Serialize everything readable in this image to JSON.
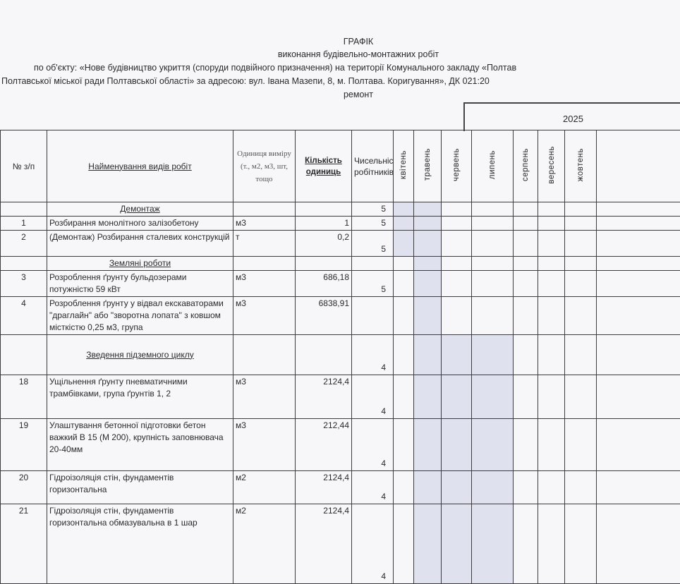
{
  "header": {
    "title": "ГРАФІК",
    "subtitle": "виконання будівельно-монтажних робіт",
    "object_line1": "по об'єкту: «Нове будівництво укриття (споруди подвійного призначення) на території Комунального закладу «Полтав",
    "object_line2": "Полтавської міської ради Полтавської області» за адресою: вул. Івана Мазепи, 8, м. Полтава. Коригування», ДК 021:20",
    "object_line3": "ремонт"
  },
  "table": {
    "year": "2025",
    "columns": {
      "num": "№ з/п",
      "name": "Найменування видів робіт",
      "unit": "Одиниця виміру (т., м2, м3, шт, тощо",
      "qty": "Кількість одиниць",
      "workers": "Чисельність робітників"
    },
    "months": [
      "квітень",
      "травень",
      "червень",
      "липень",
      "серпень",
      "вересень",
      "жовтень",
      ""
    ],
    "shade_color": "#dfe2ee",
    "rows": [
      {
        "type": "section",
        "name": "Демонтаж",
        "workers": "5",
        "shaded": [
          0,
          1
        ]
      },
      {
        "num": "1",
        "name": "Розбирання монолітного залізобетону",
        "unit": "м3",
        "qty": "1",
        "workers": "5",
        "shaded": [
          0,
          1
        ]
      },
      {
        "num": "2",
        "name": "(Демонтаж) Розбирання сталевих конструкцій",
        "unit": "т",
        "qty": "0,2",
        "workers": "5",
        "shaded": [
          0,
          1
        ]
      },
      {
        "type": "section",
        "name": "Земляні роботи",
        "workers": "",
        "shaded": [
          1
        ]
      },
      {
        "num": "3",
        "name": "Розроблення ґрунту бульдозерами потужністю 59 кВт",
        "unit": "м3",
        "qty": "686,18",
        "workers": "5",
        "shaded": [
          1
        ]
      },
      {
        "num": "4",
        "name": "Розроблення ґрунту у відвал екскаваторами \"драглайн\" або \"зворотна лопата\" з ковшом місткістю 0,25 м3, група",
        "unit": "м3",
        "qty": "6838,91",
        "workers": "",
        "shaded": [
          1
        ]
      },
      {
        "type": "section",
        "name": "Зведення підземного циклу",
        "workers": "4",
        "shaded": [
          1,
          2,
          3
        ]
      },
      {
        "num": "18",
        "name": "Ущільнення ґрунту пневматичними трамбівками, група ґрунтів 1, 2",
        "unit": "м3",
        "qty": "2124,4",
        "workers": "4",
        "shaded": [
          1,
          2,
          3
        ]
      },
      {
        "num": "19",
        "name": "Улаштування бетонної підготовки бетон важкий В 15 (М 200), крупність заповнювача 20-40мм",
        "unit": "м3",
        "qty": "212,44",
        "workers": "4",
        "shaded": [
          1,
          2,
          3
        ]
      },
      {
        "num": "20",
        "name": "Гідроізоляція стін, фундаментів горизонтальна",
        "unit": "м2",
        "qty": "2124,4",
        "workers": "4",
        "shaded": [
          1,
          2,
          3
        ]
      },
      {
        "num": "21",
        "name": "Гідроізоляція стін, фундаментів горизонтальна обмазувальна в 1 шар",
        "unit": "м2",
        "qty": "2124,4",
        "workers": "4",
        "shaded": [
          1,
          2,
          3
        ]
      }
    ]
  }
}
